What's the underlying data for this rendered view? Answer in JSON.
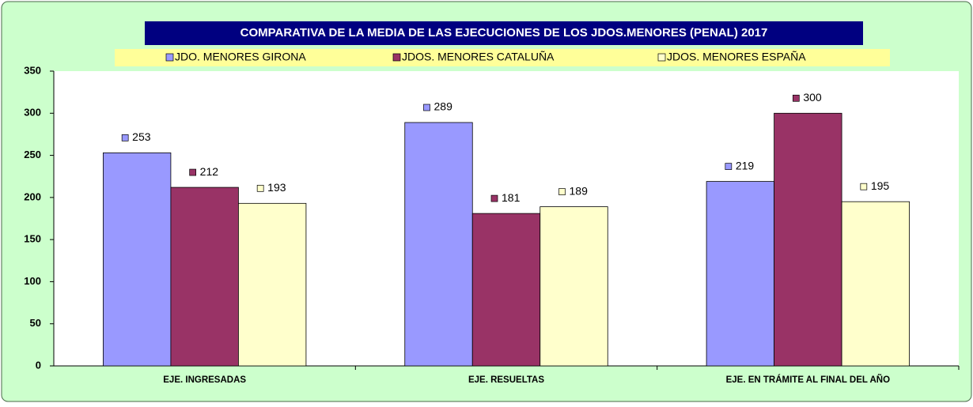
{
  "chart_data": {
    "type": "bar",
    "title": "COMPARATIVA DE LA MEDIA DE LAS EJECUCIONES  DE LOS JDOS.MENORES (PENAL)  2017",
    "categories": [
      "EJE. INGRESADAS",
      "EJE. RESUELTAS",
      "EJE. EN TRÁMITE AL FINAL DEL AÑO"
    ],
    "series": [
      {
        "name": "JDO. MENORES GIRONA",
        "color": "#9999ff",
        "values": [
          253,
          289,
          219
        ]
      },
      {
        "name": "JDOS. MENORES CATALUÑA",
        "color": "#993366",
        "values": [
          212,
          181,
          300
        ]
      },
      {
        "name": "JDOS. MENORES ESPAÑA",
        "color": "#ffffcc",
        "values": [
          193,
          189,
          195
        ]
      }
    ],
    "ylim": [
      0,
      350
    ],
    "yticks": [
      0,
      50,
      100,
      150,
      200,
      250,
      300,
      350
    ],
    "legend": "top"
  }
}
